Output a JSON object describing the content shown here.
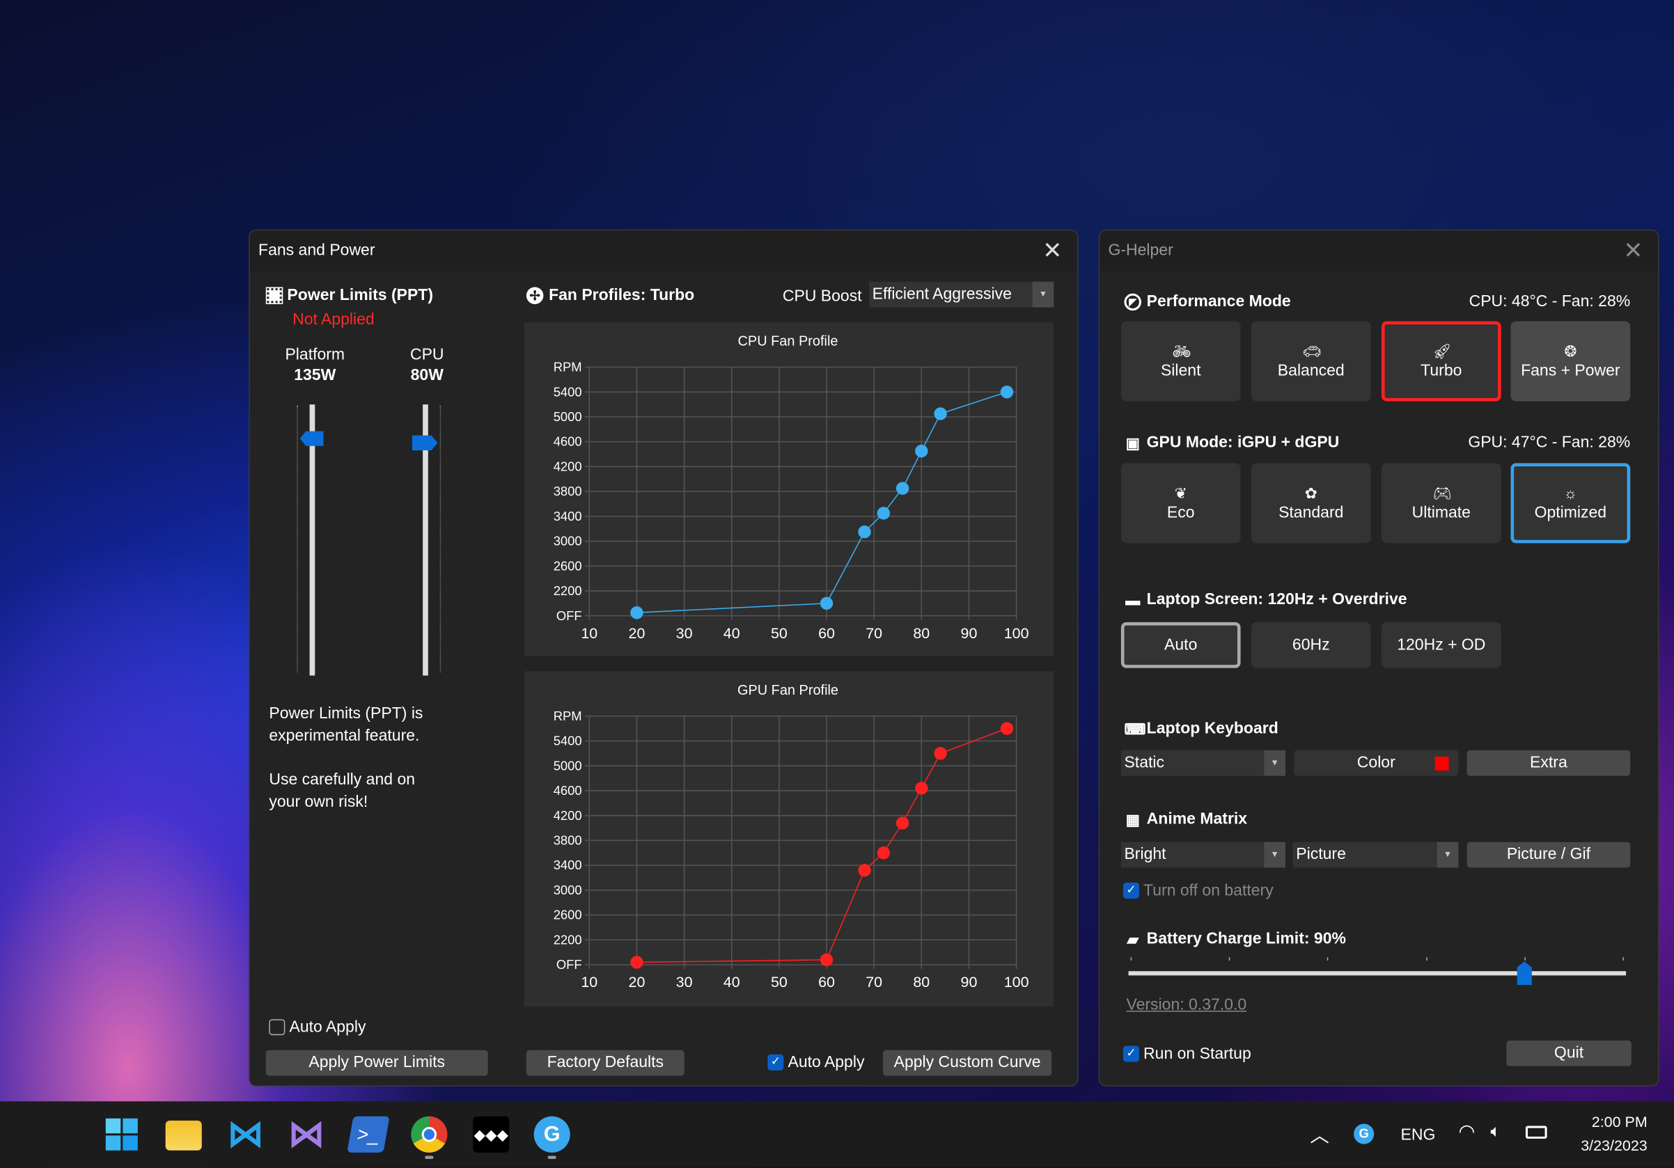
{
  "fans_window": {
    "title": "Fans and Power",
    "power_limits": {
      "title": "Power Limits (PPT)",
      "status": "Not Applied",
      "status_color": "#ff2a2a",
      "platform": {
        "label": "Platform",
        "value": "135W",
        "level_percent": 87
      },
      "cpu": {
        "label": "CPU",
        "value": "80W",
        "level_percent": 86
      },
      "note1": "Power Limits (PPT) is experimental feature.",
      "note2": "Use carefully and on your own risk!",
      "auto_apply": {
        "label": "Auto Apply",
        "checked": false
      },
      "apply_button": "Apply Power Limits"
    },
    "fan_profiles": {
      "title": "Fan Profiles: Turbo",
      "cpu_boost_label": "CPU Boost",
      "cpu_boost_value": "Efficient Aggressive"
    },
    "factory_defaults": "Factory Defaults",
    "auto_apply": {
      "label": "Auto Apply",
      "checked": true
    },
    "apply_curve": "Apply Custom Curve"
  },
  "chart_data": [
    {
      "type": "line",
      "title": "CPU Fan Profile",
      "ylabel": "RPM",
      "color": "#3aaef0",
      "x": [
        20,
        60,
        68,
        72,
        76,
        80,
        84,
        98
      ],
      "y": [
        1850,
        2000,
        3150,
        3450,
        3850,
        4450,
        5050,
        5400
      ],
      "xlim": [
        10,
        100
      ],
      "ylim": [
        1800,
        5800
      ],
      "xticks": [
        "10",
        "20",
        "30",
        "40",
        "50",
        "60",
        "70",
        "80",
        "90",
        "100"
      ],
      "yticks": [
        "OFF",
        "2200",
        "2600",
        "3000",
        "3400",
        "3800",
        "4200",
        "4600",
        "5000",
        "5400",
        "RPM"
      ],
      "grid": true
    },
    {
      "type": "line",
      "title": "GPU Fan Profile",
      "ylabel": "RPM",
      "color": "#ff2020",
      "x": [
        20,
        60,
        68,
        72,
        76,
        80,
        84,
        98
      ],
      "y": [
        1840,
        1880,
        3320,
        3600,
        4080,
        4640,
        5200,
        5600
      ],
      "xlim": [
        10,
        100
      ],
      "ylim": [
        1800,
        5800
      ],
      "xticks": [
        "10",
        "20",
        "30",
        "40",
        "50",
        "60",
        "70",
        "80",
        "90",
        "100"
      ],
      "yticks": [
        "OFF",
        "2200",
        "2600",
        "3000",
        "3400",
        "3800",
        "4200",
        "4600",
        "5000",
        "5400",
        "RPM"
      ],
      "grid": true
    }
  ],
  "ghelper": {
    "title": "G-Helper",
    "performance": {
      "title": "Performance Mode",
      "status": "CPU: 48°C -  Fan: 28%",
      "modes": [
        {
          "label": "Silent",
          "icon": "bicycle-icon"
        },
        {
          "label": "Balanced",
          "icon": "car-icon"
        },
        {
          "label": "Turbo",
          "icon": "rocket-icon",
          "active": true
        },
        {
          "label": "Fans + Power",
          "icon": "fan-icon"
        }
      ],
      "active_color": "#ff2020"
    },
    "gpu": {
      "title": "GPU Mode: iGPU + dGPU",
      "status": "GPU: 47°C -  Fan: 28%",
      "modes": [
        {
          "label": "Eco",
          "icon": "leaf-icon"
        },
        {
          "label": "Standard",
          "icon": "flower-icon"
        },
        {
          "label": "Ultimate",
          "icon": "gamepad-icon"
        },
        {
          "label": "Optimized",
          "icon": "bulb-gear-icon",
          "active": true
        }
      ],
      "active_color": "#3aa0e8"
    },
    "screen": {
      "title": "Laptop Screen: 120Hz + Overdrive",
      "modes": [
        {
          "label": "Auto",
          "active": true
        },
        {
          "label": "60Hz"
        },
        {
          "label": "120Hz + OD"
        }
      ]
    },
    "keyboard": {
      "title": "Laptop Keyboard",
      "mode": "Static",
      "color_label": "Color",
      "color": "#ff0000",
      "extra": "Extra"
    },
    "anime": {
      "title": "Anime Matrix",
      "brightness": "Bright",
      "mode": "Picture",
      "picture_button": "Picture / Gif",
      "battery_off": {
        "label": "Turn off on battery",
        "checked": true
      }
    },
    "battery": {
      "title": "Battery Charge Limit: 90%",
      "value_percent": 90,
      "min": 50,
      "max": 100
    },
    "version": "Version: 0.37.0.0",
    "startup": {
      "label": "Run on Startup",
      "checked": true
    },
    "quit": "Quit"
  },
  "taskbar": {
    "apps": [
      "start-icon",
      "file-explorer-icon",
      "vscode-icon",
      "visual-studio-icon",
      "powershell-icon",
      "chrome-icon",
      "tidal-icon",
      "g-helper-icon"
    ],
    "tray": {
      "language": "ENG",
      "time": "2:00 PM",
      "date": "3/23/2023"
    }
  }
}
